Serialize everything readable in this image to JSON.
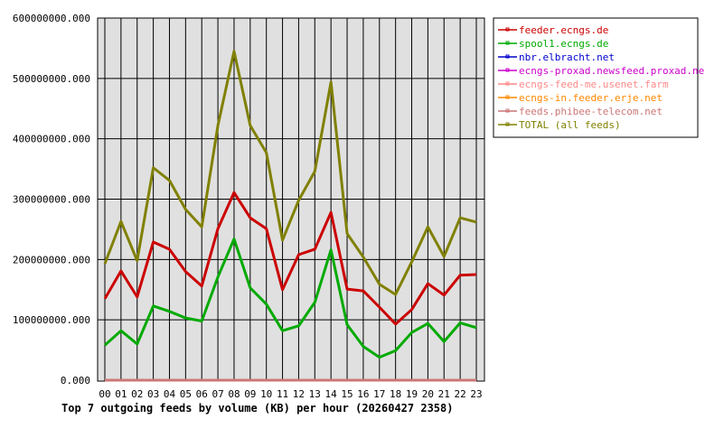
{
  "chart_data": {
    "type": "line",
    "title": "Top 7 outgoing feeds by volume (KB) per hour (20260427 2358)",
    "xlabel": "",
    "ylabel": "",
    "ylim": [
      0,
      600000000
    ],
    "yticks": [
      "0.000",
      "100000000.000",
      "200000000.000",
      "300000000.000",
      "400000000.000",
      "500000000.000",
      "600000000.000"
    ],
    "grid": true,
    "legend_position": "right",
    "categories": [
      "00",
      "01",
      "02",
      "03",
      "04",
      "05",
      "06",
      "07",
      "08",
      "09",
      "10",
      "11",
      "12",
      "13",
      "14",
      "15",
      "16",
      "17",
      "18",
      "19",
      "20",
      "21",
      "22",
      "23"
    ],
    "series": [
      {
        "name": "feeder.ecngs.de",
        "color": "#cc0000",
        "values": [
          135,
          181,
          138,
          229,
          217,
          180,
          156,
          251,
          311,
          269,
          251,
          150,
          208,
          217,
          278,
          151,
          148,
          121,
          93,
          117,
          160,
          141,
          174,
          175
        ]
      },
      {
        "name": "spool1.ecngs.de",
        "color": "#00aa00",
        "values": [
          58,
          82,
          60,
          123,
          114,
          103,
          98,
          171,
          234,
          153,
          126,
          82,
          90,
          129,
          216,
          92,
          56,
          38,
          49,
          79,
          94,
          64,
          95,
          87
        ]
      },
      {
        "name": "nbr.elbracht.net",
        "color": "#0000cc",
        "values": [
          0,
          0,
          0,
          0,
          0,
          0,
          0,
          0,
          0,
          0,
          0,
          0,
          0,
          0,
          0,
          0,
          0,
          0,
          0,
          0,
          0,
          0,
          0,
          0
        ]
      },
      {
        "name": "ecngs-proxad.newsfeed.proxad.net",
        "color": "#cc00cc",
        "values": [
          0,
          0,
          0,
          0,
          0,
          0,
          0,
          0,
          0,
          0,
          0,
          0,
          0,
          0,
          0,
          0,
          0,
          0,
          0,
          0,
          0,
          0,
          0,
          0
        ]
      },
      {
        "name": "ecngs-feed-me.usenet.farm",
        "color": "#ff8888",
        "values": [
          0,
          0,
          0,
          0,
          0,
          0,
          0,
          0,
          0,
          0,
          0,
          0,
          0,
          0,
          0,
          0,
          0,
          0,
          0,
          0,
          0,
          0,
          0,
          0
        ]
      },
      {
        "name": "ecngs-in.feeder.erje.net",
        "color": "#ff8800",
        "values": [
          0,
          0,
          0,
          0,
          0,
          0,
          0,
          0,
          0,
          0,
          0,
          0,
          0,
          0,
          0,
          0,
          0,
          0,
          0,
          0,
          0,
          0,
          0,
          0
        ]
      },
      {
        "name": "feeds.phibee-telecom.net",
        "color": "#cc7777",
        "values": [
          0,
          0,
          0,
          0,
          0,
          0,
          0,
          0,
          0,
          0,
          0,
          0,
          0,
          0,
          0,
          0,
          0,
          0,
          0,
          0,
          0,
          0,
          0,
          0
        ]
      },
      {
        "name": "TOTAL (all feeds)",
        "color": "#808000",
        "values": [
          193,
          263,
          198,
          352,
          331,
          283,
          254,
          422,
          545,
          422,
          377,
          232,
          298,
          346,
          494,
          243,
          204,
          159,
          142,
          196,
          254,
          205,
          269,
          262
        ]
      }
    ],
    "value_unit_multiplier": 1000000
  }
}
